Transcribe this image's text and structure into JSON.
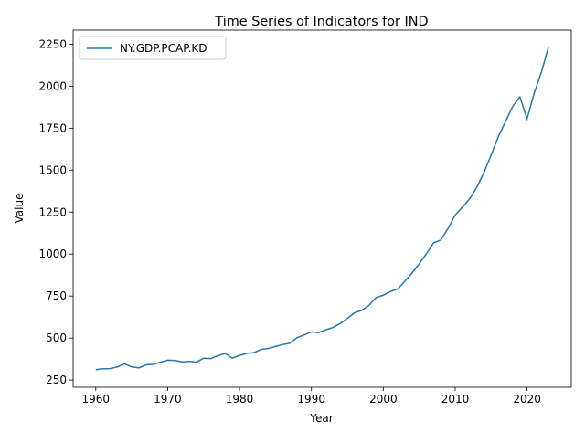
{
  "chart_data": {
    "type": "line",
    "title": "Time Series of Indicators for IND",
    "xlabel": "Year",
    "ylabel": "Value",
    "x": [
      1960,
      1961,
      1962,
      1963,
      1964,
      1965,
      1966,
      1967,
      1968,
      1969,
      1970,
      1971,
      1972,
      1973,
      1974,
      1975,
      1976,
      1977,
      1978,
      1979,
      1980,
      1981,
      1982,
      1983,
      1984,
      1985,
      1986,
      1987,
      1988,
      1989,
      1990,
      1991,
      1992,
      1993,
      1994,
      1995,
      1996,
      1997,
      1998,
      1999,
      2000,
      2001,
      2002,
      2003,
      2004,
      2005,
      2006,
      2007,
      2008,
      2009,
      2010,
      2011,
      2012,
      2013,
      2014,
      2015,
      2016,
      2017,
      2018,
      2019,
      2020,
      2021,
      2022,
      2023
    ],
    "series": [
      {
        "name": "NY.GDP.PCAP.KD",
        "color": "#1f77b4",
        "values": [
          312,
          317,
          318,
          328,
          346,
          328,
          322,
          340,
          343,
          356,
          368,
          367,
          358,
          361,
          357,
          380,
          378,
          395,
          408,
          380,
          396,
          409,
          413,
          432,
          438,
          450,
          461,
          469,
          502,
          519,
          537,
          532,
          549,
          563,
          586,
          617,
          650,
          665,
          694,
          741,
          755,
          777,
          792,
          838,
          887,
          942,
          1002,
          1067,
          1084,
          1152,
          1233,
          1279,
          1328,
          1397,
          1485,
          1590,
          1700,
          1789,
          1880,
          1936,
          1806,
          1960,
          2085,
          2237
        ]
      }
    ],
    "xlim": [
      1956.85,
      2026.15
    ],
    "xticks": [
      1960,
      1970,
      1980,
      1990,
      2000,
      2010,
      2020
    ],
    "ylim": [
      207,
      2334
    ],
    "yticks": [
      250,
      500,
      750,
      1000,
      1250,
      1500,
      1750,
      2000,
      2250
    ],
    "grid": false,
    "legend": "upper left"
  }
}
